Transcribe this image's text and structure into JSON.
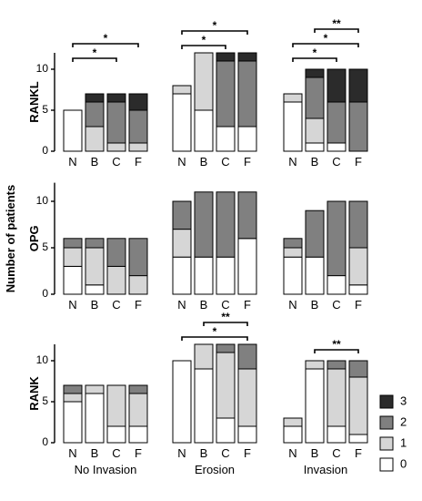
{
  "common_ylabel": "Number of patients",
  "group_labels": [
    "No Invasion",
    "Erosion",
    "Invasion"
  ],
  "legend": [
    {
      "label": "3",
      "color": "#2b2b2b"
    },
    {
      "label": "2",
      "color": "#808080"
    },
    {
      "label": "1",
      "color": "#d6d6d6"
    },
    {
      "label": "0",
      "color": "#ffffff"
    }
  ],
  "chart_data": [
    {
      "type": "bar",
      "stacked": true,
      "ylabel": "RANKL",
      "ylim": [
        0,
        12
      ],
      "yticks": [
        0,
        5,
        10
      ],
      "groups": [
        "No Invasion",
        "Erosion",
        "Invasion"
      ],
      "categories": [
        "N",
        "B",
        "C",
        "F"
      ],
      "series": [
        {
          "name": "0",
          "values": [
            [
              5,
              0,
              0,
              0
            ],
            [
              7,
              5,
              3,
              3
            ],
            [
              6,
              1,
              1,
              0
            ]
          ]
        },
        {
          "name": "1",
          "values": [
            [
              0,
              3,
              1,
              1
            ],
            [
              1,
              7,
              0,
              0
            ],
            [
              1,
              3,
              0,
              0
            ]
          ]
        },
        {
          "name": "2",
          "values": [
            [
              0,
              3,
              5,
              4
            ],
            [
              0,
              0,
              8,
              8
            ],
            [
              0,
              5,
              5,
              6
            ]
          ]
        },
        {
          "name": "3",
          "values": [
            [
              0,
              1,
              1,
              2
            ],
            [
              0,
              0,
              1,
              1
            ],
            [
              0,
              1,
              4,
              4
            ]
          ]
        }
      ],
      "significance": [
        {
          "group": 0,
          "from": "N",
          "to": "C",
          "label": "*"
        },
        {
          "group": 0,
          "from": "N",
          "to": "F",
          "label": "*"
        },
        {
          "group": 1,
          "from": "N",
          "to": "C",
          "label": "*"
        },
        {
          "group": 1,
          "from": "N",
          "to": "F",
          "label": "*"
        },
        {
          "group": 2,
          "from": "N",
          "to": "C",
          "label": "*"
        },
        {
          "group": 2,
          "from": "N",
          "to": "F",
          "label": "*"
        },
        {
          "group": 2,
          "from": "B",
          "to": "F",
          "label": "**"
        }
      ]
    },
    {
      "type": "bar",
      "stacked": true,
      "ylabel": "OPG",
      "ylim": [
        0,
        12
      ],
      "yticks": [
        0,
        5,
        10
      ],
      "groups": [
        "No Invasion",
        "Erosion",
        "Invasion"
      ],
      "categories": [
        "N",
        "B",
        "C",
        "F"
      ],
      "series": [
        {
          "name": "0",
          "values": [
            [
              3,
              1,
              0,
              0
            ],
            [
              4,
              4,
              4,
              6
            ],
            [
              4,
              4,
              2,
              1
            ]
          ]
        },
        {
          "name": "1",
          "values": [
            [
              2,
              4,
              3,
              2
            ],
            [
              3,
              0,
              0,
              0
            ],
            [
              1,
              0,
              0,
              4
            ]
          ]
        },
        {
          "name": "2",
          "values": [
            [
              1,
              1,
              3,
              4
            ],
            [
              3,
              7,
              7,
              5
            ],
            [
              1,
              5,
              8,
              5
            ]
          ]
        },
        {
          "name": "3",
          "values": [
            [
              0,
              0,
              0,
              0
            ],
            [
              0,
              0,
              0,
              0
            ],
            [
              0,
              0,
              0,
              0
            ]
          ]
        }
      ],
      "significance": []
    },
    {
      "type": "bar",
      "stacked": true,
      "ylabel": "RANK",
      "ylim": [
        0,
        12
      ],
      "yticks": [
        0,
        5,
        10
      ],
      "groups": [
        "No Invasion",
        "Erosion",
        "Invasion"
      ],
      "categories": [
        "N",
        "B",
        "C",
        "F"
      ],
      "series": [
        {
          "name": "0",
          "values": [
            [
              5,
              6,
              2,
              2
            ],
            [
              10,
              9,
              3,
              2
            ],
            [
              2,
              9,
              2,
              1
            ]
          ]
        },
        {
          "name": "1",
          "values": [
            [
              1,
              1,
              5,
              4
            ],
            [
              0,
              3,
              8,
              7
            ],
            [
              1,
              1,
              7,
              7
            ]
          ]
        },
        {
          "name": "2",
          "values": [
            [
              1,
              0,
              0,
              1
            ],
            [
              0,
              0,
              1,
              3
            ],
            [
              0,
              0,
              1,
              2
            ]
          ]
        },
        {
          "name": "3",
          "values": [
            [
              0,
              0,
              0,
              0
            ],
            [
              0,
              0,
              0,
              0
            ],
            [
              0,
              0,
              0,
              0
            ]
          ]
        }
      ],
      "significance": [
        {
          "group": 1,
          "from": "N",
          "to": "F",
          "label": "*"
        },
        {
          "group": 1,
          "from": "B",
          "to": "F",
          "label": "**"
        },
        {
          "group": 2,
          "from": "B",
          "to": "F",
          "label": "**"
        }
      ]
    }
  ]
}
